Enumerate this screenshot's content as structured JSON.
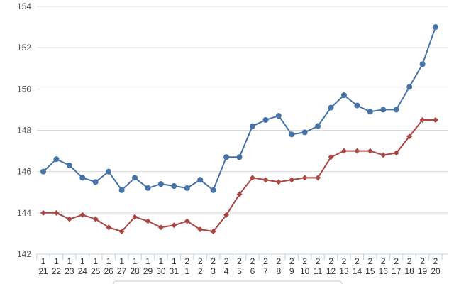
{
  "chart_data": {
    "type": "line",
    "title": "",
    "xlabel": "",
    "ylabel": "",
    "ylim": [
      142,
      154
    ],
    "y_ticks": [
      142,
      144,
      146,
      148,
      150,
      152,
      154
    ],
    "grid": "horizontal",
    "categories": [
      [
        "1",
        "21"
      ],
      [
        "1",
        "22"
      ],
      [
        "1",
        "23"
      ],
      [
        "1",
        "24"
      ],
      [
        "1",
        "25"
      ],
      [
        "1",
        "26"
      ],
      [
        "1",
        "27"
      ],
      [
        "1",
        "28"
      ],
      [
        "1",
        "29"
      ],
      [
        "1",
        "30"
      ],
      [
        "1",
        "31"
      ],
      [
        "2",
        "1"
      ],
      [
        "2",
        "2"
      ],
      [
        "2",
        "3"
      ],
      [
        "2",
        "4"
      ],
      [
        "2",
        "5"
      ],
      [
        "2",
        "6"
      ],
      [
        "2",
        "7"
      ],
      [
        "2",
        "8"
      ],
      [
        "2",
        "9"
      ],
      [
        "2",
        "10"
      ],
      [
        "2",
        "11"
      ],
      [
        "2",
        "12"
      ],
      [
        "2",
        "13"
      ],
      [
        "2",
        "14"
      ],
      [
        "2",
        "15"
      ],
      [
        "2",
        "16"
      ],
      [
        "2",
        "17"
      ],
      [
        "2",
        "18"
      ],
      [
        "2",
        "19"
      ],
      [
        "2",
        "20"
      ]
    ],
    "series": [
      {
        "color": "#4572a7",
        "marker": "circle",
        "values": [
          146.0,
          146.6,
          146.3,
          145.7,
          145.5,
          146.0,
          145.1,
          145.7,
          145.2,
          145.4,
          145.3,
          145.2,
          145.6,
          145.1,
          146.7,
          146.7,
          148.2,
          148.5,
          148.7,
          147.8,
          147.9,
          148.2,
          149.1,
          149.7,
          149.2,
          148.9,
          149.0,
          149.0,
          150.1,
          151.2,
          153.0
        ]
      },
      {
        "color": "#aa4643",
        "marker": "diamond",
        "values": [
          144.0,
          144.0,
          143.7,
          143.9,
          143.7,
          143.3,
          143.1,
          143.8,
          143.6,
          143.3,
          143.4,
          143.6,
          143.2,
          143.1,
          143.9,
          144.9,
          145.7,
          145.6,
          145.5,
          145.6,
          145.7,
          145.7,
          146.7,
          147.0,
          147.0,
          147.0,
          146.8,
          146.9,
          147.7,
          148.5,
          148.5
        ]
      }
    ]
  }
}
